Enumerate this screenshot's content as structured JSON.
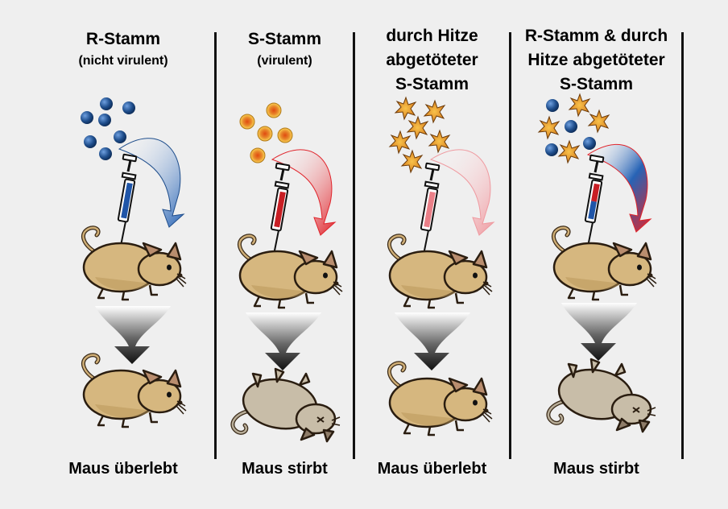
{
  "columns": [
    {
      "title": "R-Stamm",
      "subtitle": "(nicht virulent)",
      "result": "Maus überlebt",
      "syringe": "blue",
      "arrow": "blue",
      "outcome": "alive"
    },
    {
      "title": "S-Stamm",
      "subtitle": "(virulent)",
      "result": "Maus stirbt",
      "syringe": "red",
      "arrow": "red",
      "outcome": "dead"
    },
    {
      "title_lines": [
        "durch Hitze",
        "abgetöteter",
        "S-Stamm"
      ],
      "result": "Maus überlebt",
      "syringe": "pink",
      "arrow": "pink",
      "outcome": "alive"
    },
    {
      "title_lines": [
        "R-Stamm & durch",
        "Hitze abgetöteter",
        "S-Stamm"
      ],
      "result": "Maus stirbt",
      "syringe": "mixed",
      "arrow": "mixed",
      "outcome": "dead"
    }
  ],
  "colors": {
    "background": "#efefef",
    "r_strain": "#1f4e8c",
    "s_strain": "#e8a52a",
    "killed_s": "#d9861c",
    "arrow_blue": "#2763b5",
    "arrow_red": "#e0242b",
    "arrow_pink": "#f0a0a6",
    "mouse_alive": "#d6b77f",
    "mouse_dead": "#c8bda8"
  }
}
